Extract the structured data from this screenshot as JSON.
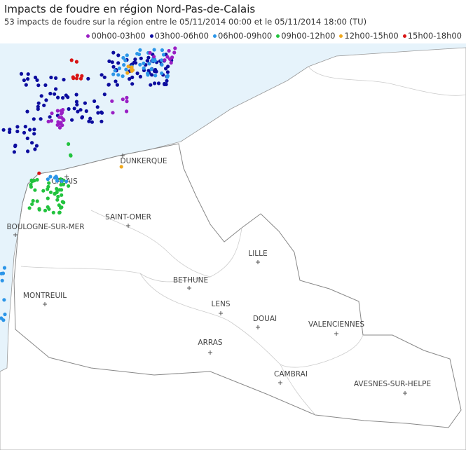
{
  "header": {
    "title": "Impacts de foudre en région Nord-Pas-de-Calais",
    "subtitle": "53 impacts de foudre sur la région entre le 05/11/2014 00:00 et le 05/11/2014 18:00 (TU)"
  },
  "legend": [
    {
      "label": "00h00-03h00",
      "color": "#9a1fc4"
    },
    {
      "label": "03h00-06h00",
      "color": "#0c0c9e"
    },
    {
      "label": "06h00-09h00",
      "color": "#2b95e8"
    },
    {
      "label": "09h00-12h00",
      "color": "#22c33e"
    },
    {
      "label": "12h00-15h00",
      "color": "#f0a81c"
    },
    {
      "label": "15h00-18h00",
      "color": "#d81414"
    }
  ],
  "cities": [
    "DUNKERQUE",
    "CALAIS",
    "BOULOGNE-SUR-MER",
    "SAINT-OMER",
    "LILLE",
    "BETHUNE",
    "MONTREUIL",
    "LENS",
    "DOUAI",
    "VALENCIENNES",
    "ARRAS",
    "CAMBRAI",
    "AVESNES-SUR-HELPE"
  ]
}
